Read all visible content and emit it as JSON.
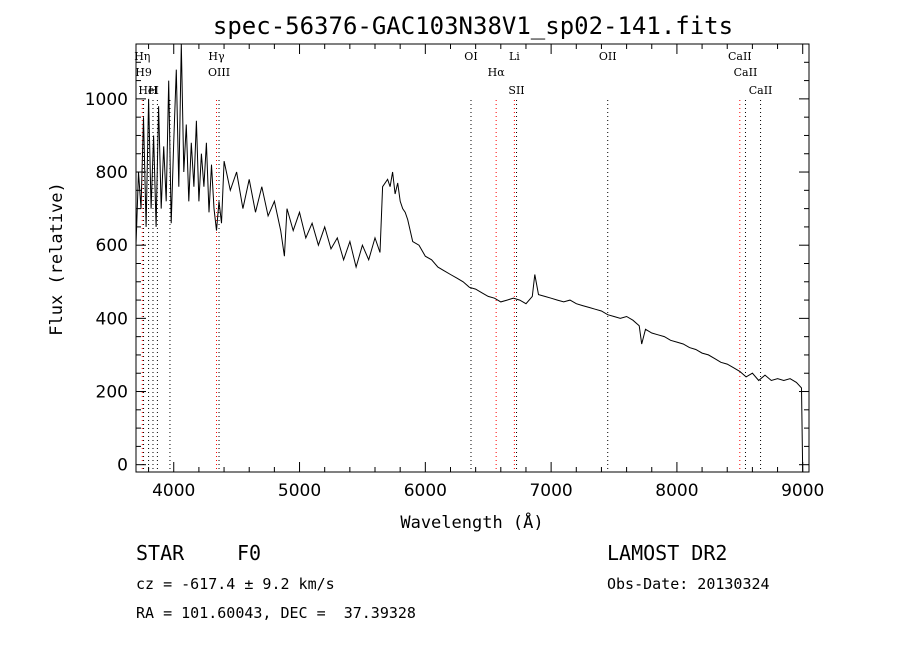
{
  "chart_data": {
    "type": "line",
    "title": "spec-56376-GAC103N38V1_sp02-141.fits",
    "xlabel": "Wavelength (Å)",
    "ylabel": "Flux (relative)",
    "xlim": [
      3700,
      9050
    ],
    "ylim": [
      -20,
      1150
    ],
    "xticks": [
      4000,
      5000,
      6000,
      7000,
      8000,
      9000
    ],
    "yticks": [
      0,
      200,
      400,
      600,
      800,
      1000
    ],
    "grid": false,
    "series": [
      {
        "points": [
          [
            3700,
            600
          ],
          [
            3720,
            800
          ],
          [
            3740,
            700
          ],
          [
            3760,
            950
          ],
          [
            3780,
            650
          ],
          [
            3800,
            1000
          ],
          [
            3820,
            700
          ],
          [
            3840,
            900
          ],
          [
            3860,
            650
          ],
          [
            3880,
            980
          ],
          [
            3900,
            700
          ],
          [
            3920,
            870
          ],
          [
            3940,
            720
          ],
          [
            3960,
            1050
          ],
          [
            3980,
            660
          ],
          [
            4000,
            880
          ],
          [
            4020,
            1080
          ],
          [
            4040,
            760
          ],
          [
            4060,
            1150
          ],
          [
            4080,
            800
          ],
          [
            4100,
            930
          ],
          [
            4120,
            720
          ],
          [
            4140,
            880
          ],
          [
            4160,
            760
          ],
          [
            4180,
            940
          ],
          [
            4200,
            720
          ],
          [
            4220,
            850
          ],
          [
            4240,
            760
          ],
          [
            4260,
            880
          ],
          [
            4280,
            690
          ],
          [
            4300,
            820
          ],
          [
            4320,
            700
          ],
          [
            4340,
            640
          ],
          [
            4360,
            720
          ],
          [
            4380,
            660
          ],
          [
            4400,
            830
          ],
          [
            4450,
            750
          ],
          [
            4500,
            800
          ],
          [
            4550,
            700
          ],
          [
            4600,
            780
          ],
          [
            4650,
            690
          ],
          [
            4700,
            760
          ],
          [
            4750,
            680
          ],
          [
            4800,
            720
          ],
          [
            4850,
            640
          ],
          [
            4880,
            570
          ],
          [
            4900,
            700
          ],
          [
            4950,
            640
          ],
          [
            5000,
            690
          ],
          [
            5050,
            620
          ],
          [
            5100,
            660
          ],
          [
            5150,
            600
          ],
          [
            5200,
            650
          ],
          [
            5250,
            590
          ],
          [
            5300,
            620
          ],
          [
            5350,
            560
          ],
          [
            5400,
            610
          ],
          [
            5450,
            540
          ],
          [
            5500,
            600
          ],
          [
            5550,
            560
          ],
          [
            5600,
            620
          ],
          [
            5640,
            580
          ],
          [
            5660,
            760
          ],
          [
            5700,
            780
          ],
          [
            5720,
            760
          ],
          [
            5740,
            800
          ],
          [
            5760,
            740
          ],
          [
            5780,
            770
          ],
          [
            5800,
            720
          ],
          [
            5820,
            700
          ],
          [
            5840,
            690
          ],
          [
            5860,
            670
          ],
          [
            5880,
            640
          ],
          [
            5900,
            610
          ],
          [
            5950,
            600
          ],
          [
            6000,
            570
          ],
          [
            6050,
            560
          ],
          [
            6100,
            540
          ],
          [
            6150,
            530
          ],
          [
            6200,
            520
          ],
          [
            6250,
            510
          ],
          [
            6300,
            500
          ],
          [
            6350,
            485
          ],
          [
            6400,
            480
          ],
          [
            6450,
            470
          ],
          [
            6500,
            460
          ],
          [
            6550,
            455
          ],
          [
            6600,
            445
          ],
          [
            6650,
            450
          ],
          [
            6700,
            455
          ],
          [
            6750,
            450
          ],
          [
            6800,
            440
          ],
          [
            6850,
            460
          ],
          [
            6870,
            520
          ],
          [
            6900,
            465
          ],
          [
            6950,
            460
          ],
          [
            7000,
            455
          ],
          [
            7050,
            450
          ],
          [
            7100,
            445
          ],
          [
            7150,
            450
          ],
          [
            7200,
            440
          ],
          [
            7250,
            435
          ],
          [
            7300,
            430
          ],
          [
            7350,
            425
          ],
          [
            7400,
            420
          ],
          [
            7450,
            410
          ],
          [
            7500,
            405
          ],
          [
            7550,
            400
          ],
          [
            7600,
            405
          ],
          [
            7650,
            395
          ],
          [
            7700,
            380
          ],
          [
            7720,
            330
          ],
          [
            7750,
            370
          ],
          [
            7800,
            360
          ],
          [
            7850,
            355
          ],
          [
            7900,
            350
          ],
          [
            7950,
            340
          ],
          [
            8000,
            335
          ],
          [
            8050,
            330
          ],
          [
            8100,
            320
          ],
          [
            8150,
            315
          ],
          [
            8200,
            305
          ],
          [
            8250,
            300
          ],
          [
            8300,
            290
          ],
          [
            8350,
            280
          ],
          [
            8400,
            275
          ],
          [
            8450,
            265
          ],
          [
            8500,
            255
          ],
          [
            8550,
            240
          ],
          [
            8600,
            250
          ],
          [
            8650,
            230
          ],
          [
            8700,
            245
          ],
          [
            8750,
            230
          ],
          [
            8800,
            235
          ],
          [
            8850,
            230
          ],
          [
            8900,
            235
          ],
          [
            8950,
            225
          ],
          [
            8990,
            210
          ],
          [
            9000,
            -20
          ]
        ]
      }
    ],
    "lines": [
      {
        "wave": 3750,
        "label": "Hη",
        "color": "#ff0000"
      },
      {
        "wave": 3760,
        "label": "H9",
        "color": "#000000"
      },
      {
        "wave": 3800,
        "label": "HeI",
        "color": "#000000"
      },
      {
        "wave": 3835,
        "label": "H",
        "color": "#000000"
      },
      {
        "wave": 3870,
        "label": "",
        "color": "#000000"
      },
      {
        "wave": 3970,
        "label": "",
        "color": "#000000"
      },
      {
        "wave": 4340,
        "label": "Hγ",
        "color": "#ff0000"
      },
      {
        "wave": 4360,
        "label": "OIII",
        "color": "#000000"
      },
      {
        "wave": 6363,
        "label": "OI",
        "color": "#000000"
      },
      {
        "wave": 6563,
        "label": "Hα",
        "color": "#ff0000"
      },
      {
        "wave": 6708,
        "label": "Li",
        "color": "#ff0000"
      },
      {
        "wave": 6725,
        "label": "SII",
        "color": "#000000"
      },
      {
        "wave": 7450,
        "label": "OII",
        "color": "#000000"
      },
      {
        "wave": 8500,
        "label": "CaII",
        "color": "#ff0000"
      },
      {
        "wave": 8545,
        "label": "CaII",
        "color": "#000000"
      },
      {
        "wave": 8665,
        "label": "CaII",
        "color": "#000000"
      }
    ]
  },
  "info": {
    "object_class": "STAR",
    "subclass": "F0",
    "survey": "LAMOST DR2",
    "cz": "cz = -617.4 ± 9.2 km/s",
    "obs_date": "Obs-Date: 20130324",
    "coords": "RA = 101.60043, DEC =  37.39328"
  }
}
